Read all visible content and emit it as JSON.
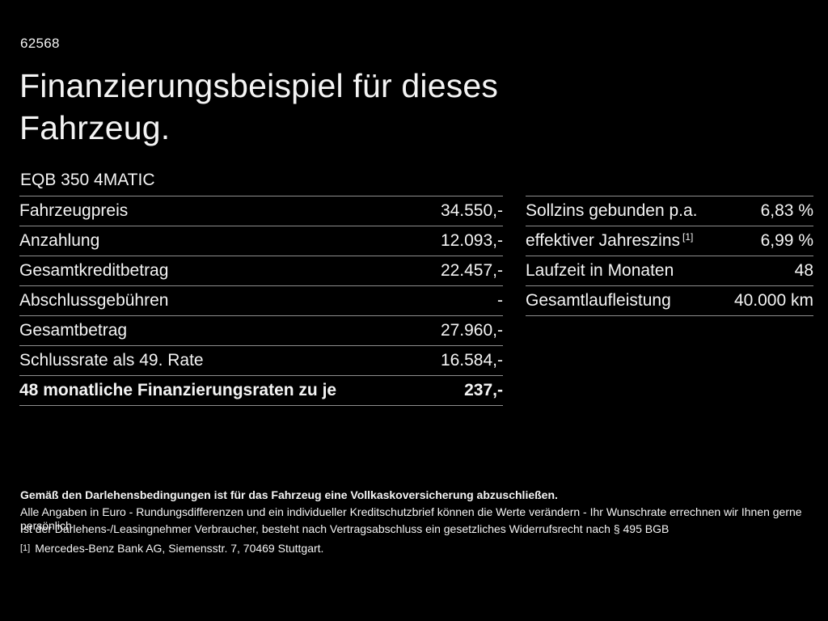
{
  "header": {
    "doc_number": "62568",
    "title_line1": "Finanzierungsbeispiel für dieses",
    "title_line2": "Fahrzeug.",
    "model": "EQB 350 4MATIC"
  },
  "left_table": {
    "rows": [
      {
        "label": "Fahrzeugpreis",
        "value": "34.550,-",
        "bold": false
      },
      {
        "label": "Anzahlung",
        "value": "12.093,-",
        "bold": false
      },
      {
        "label": "Gesamtkreditbetrag",
        "value": "22.457,-",
        "bold": false
      },
      {
        "label": "Abschlussgebühren",
        "value": "-",
        "bold": false
      },
      {
        "label": "Gesamtbetrag",
        "value": "27.960,-",
        "bold": false
      },
      {
        "label": "Schlussrate als 49. Rate",
        "value": "16.584,-",
        "bold": false
      },
      {
        "label": "48 monatliche Finanzierungsraten zu je",
        "value": "237,-",
        "bold": true
      }
    ]
  },
  "right_table": {
    "rows": [
      {
        "label": "Sollzins gebunden p.a.",
        "value": "6,83 %",
        "bold": false
      },
      {
        "label": "effektiver Jahreszins",
        "sup": "[1]",
        "value": "6,99 %",
        "bold": false
      },
      {
        "label": "Laufzeit in Monaten",
        "value": "48",
        "bold": false
      },
      {
        "label": "Gesamtlaufleistung",
        "value": "40.000 km",
        "bold": false
      }
    ]
  },
  "footer": {
    "bold_note": "Gemäß den Darlehensbedingungen ist für das Fahrzeug eine Vollkaskoversicherung abzuschließen.",
    "note1": "Alle Angaben in Euro - Rundungsdifferenzen und ein individueller Kreditschutzbrief können die Werte verändern - Ihr Wunschrate errechnen wir Ihnen gerne persönlich",
    "note2": "Ist der Darlehens-/Leasingnehmer Verbraucher, besteht nach Vertragsabschluss ein gesetzliches Widerrufsrecht nach § 495 BGB",
    "footnote_marker": "[1]",
    "footnote_text": "Mercedes-Benz Bank AG, Siemensstr. 7, 70469 Stuttgart."
  },
  "colors": {
    "background": "#000000",
    "text": "#f4f4f4",
    "divider": "#8e8e8e"
  }
}
